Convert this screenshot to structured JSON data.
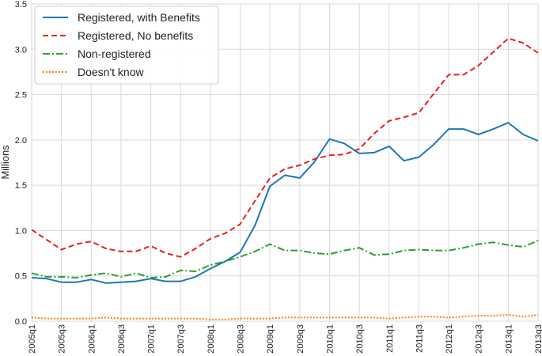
{
  "chart_data": {
    "type": "line",
    "title": "",
    "xlabel": "",
    "ylabel": "Millions",
    "ylim": [
      0,
      3.5
    ],
    "yticks": [
      "0.0",
      "0.5",
      "1.0",
      "1.5",
      "2.0",
      "2.5",
      "3.0",
      "3.5"
    ],
    "grid": true,
    "legend_position": "top-left",
    "categories": [
      "2005q1",
      "2005q2",
      "2005q3",
      "2005q4",
      "2006q1",
      "2006q2",
      "2006q3",
      "2006q4",
      "2007q1",
      "2007q2",
      "2007q3",
      "2007q4",
      "2008q1",
      "2008q2",
      "2008q3",
      "2008q4",
      "2009q1",
      "2009q2",
      "2009q3",
      "2009q4",
      "2010q1",
      "2010q2",
      "2010q3",
      "2010q4",
      "2011q1",
      "2011q2",
      "2011q3",
      "2011q4",
      "2012q1",
      "2012q2",
      "2012q3",
      "2012q4",
      "2013q1",
      "2013q2",
      "2013q3"
    ],
    "tick_labels": [
      "2005q1",
      "2005q3",
      "2006q1",
      "2006q3",
      "2007q1",
      "2007q3",
      "2008q1",
      "2008q3",
      "2009q1",
      "2009q3",
      "2010q1",
      "2010q3",
      "2011q1",
      "2011q3",
      "2012q1",
      "2012q3",
      "2013q1",
      "2013q3"
    ],
    "series": [
      {
        "name": "Registered, with Benefits",
        "color": "#1f77b4",
        "dash": "solid",
        "values": [
          0.48,
          0.47,
          0.43,
          0.43,
          0.46,
          0.42,
          0.43,
          0.44,
          0.47,
          0.44,
          0.44,
          0.49,
          0.58,
          0.66,
          0.76,
          1.06,
          1.49,
          1.61,
          1.58,
          1.76,
          2.01,
          1.96,
          1.85,
          1.86,
          1.93,
          1.77,
          1.81,
          1.95,
          2.12,
          2.12,
          2.06,
          2.12,
          2.19,
          2.06,
          1.99
        ]
      },
      {
        "name": "Registered, No benefits",
        "color": "#e8201e",
        "dash": "dashed",
        "values": [
          1.01,
          0.9,
          0.79,
          0.85,
          0.88,
          0.8,
          0.77,
          0.77,
          0.83,
          0.75,
          0.71,
          0.8,
          0.91,
          0.97,
          1.07,
          1.33,
          1.58,
          1.68,
          1.72,
          1.79,
          1.83,
          1.84,
          1.9,
          2.07,
          2.21,
          2.25,
          2.3,
          2.51,
          2.72,
          2.72,
          2.82,
          2.97,
          3.12,
          3.07,
          2.96
        ]
      },
      {
        "name": "Non-registered",
        "color": "#2ca02c",
        "dash": "dashdot",
        "values": [
          0.53,
          0.49,
          0.49,
          0.48,
          0.51,
          0.53,
          0.49,
          0.53,
          0.48,
          0.49,
          0.56,
          0.55,
          0.62,
          0.66,
          0.71,
          0.77,
          0.85,
          0.78,
          0.78,
          0.75,
          0.74,
          0.78,
          0.81,
          0.73,
          0.74,
          0.78,
          0.79,
          0.78,
          0.78,
          0.81,
          0.85,
          0.87,
          0.84,
          0.82,
          0.89
        ]
      },
      {
        "name": "Doesn't know",
        "color": "#ff7f0e",
        "dash": "dotted",
        "values": [
          0.04,
          0.03,
          0.03,
          0.03,
          0.03,
          0.04,
          0.03,
          0.03,
          0.03,
          0.03,
          0.03,
          0.03,
          0.02,
          0.02,
          0.03,
          0.03,
          0.03,
          0.04,
          0.04,
          0.04,
          0.04,
          0.04,
          0.04,
          0.04,
          0.03,
          0.04,
          0.05,
          0.05,
          0.04,
          0.05,
          0.06,
          0.06,
          0.07,
          0.05,
          0.07
        ]
      }
    ]
  }
}
